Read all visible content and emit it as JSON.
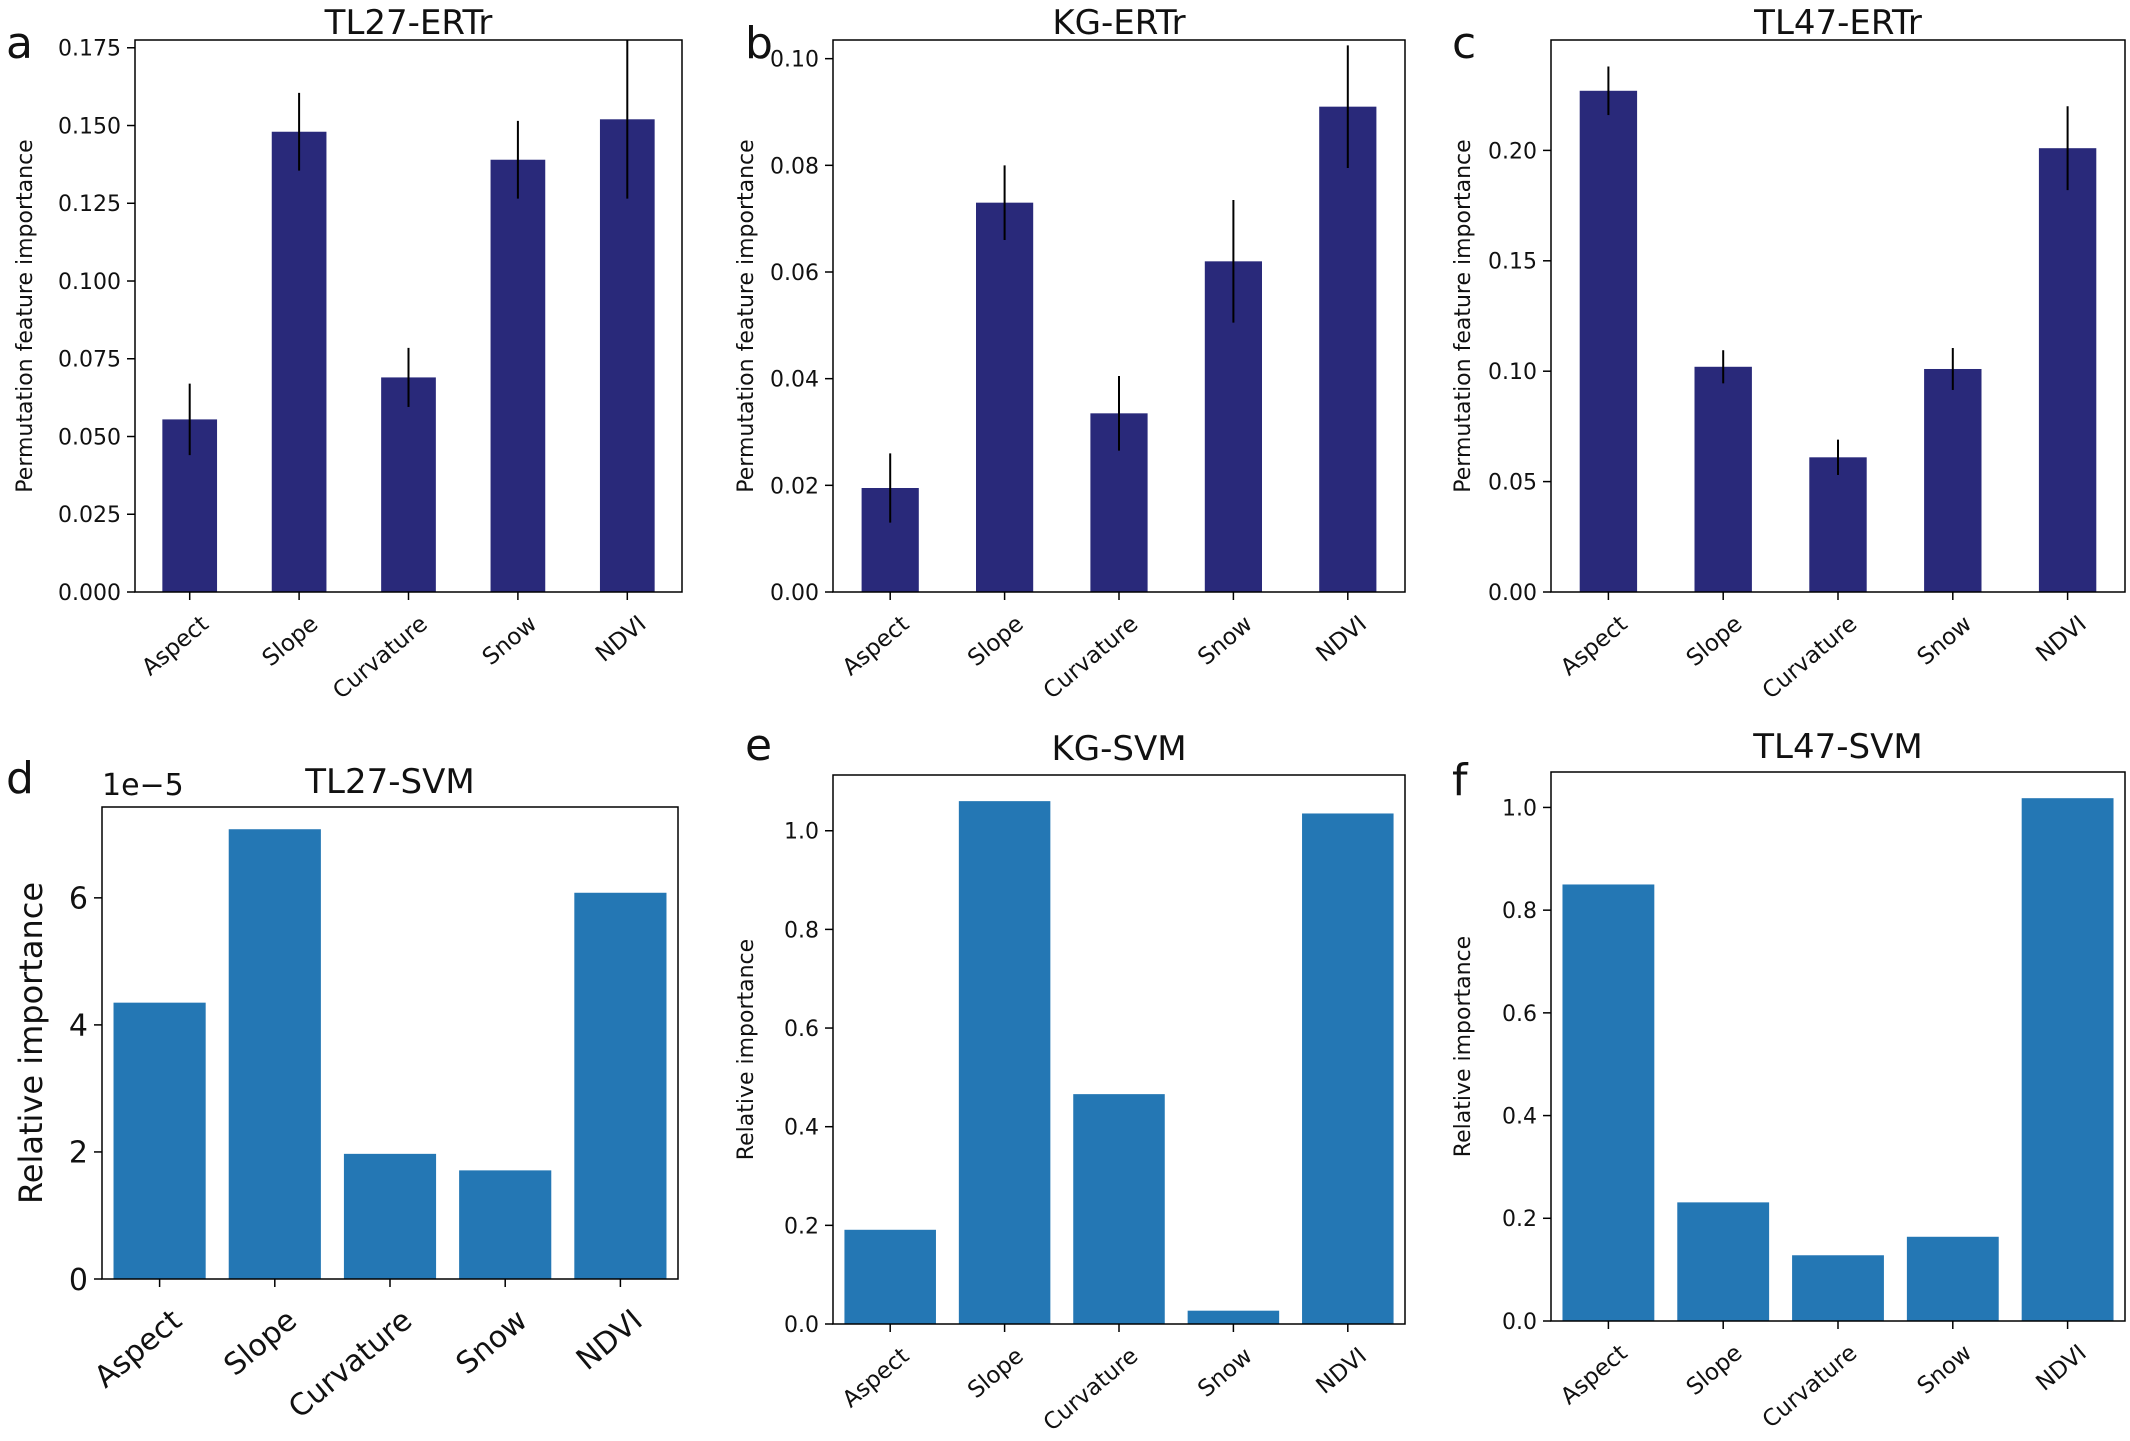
{
  "colors": {
    "ertr_bar": "#29297a",
    "svm_bar": "#2477b4",
    "error_bar": "#000000",
    "axis": "#000000"
  },
  "chart_data": [
    {
      "panel_label": "a",
      "title": "TL27-ERTr",
      "type": "bar",
      "categories": [
        "Aspect",
        "Slope",
        "Curvature",
        "Snow",
        "NDVI"
      ],
      "values": [
        0.0555,
        0.148,
        0.069,
        0.139,
        0.152
      ],
      "errors": [
        0.0115,
        0.0125,
        0.0095,
        0.0125,
        0.0255
      ],
      "ylabel": "Permutation feature importance",
      "xlabel": "",
      "ylim": [
        0,
        0.1775
      ],
      "yticks": [
        0,
        0.025,
        0.05,
        0.075,
        0.1,
        0.125,
        0.15,
        0.175
      ],
      "ytick_labels": [
        "0.000",
        "0.025",
        "0.050",
        "0.075",
        "0.100",
        "0.125",
        "0.150",
        "0.175"
      ],
      "scale_label": "",
      "bar_color": "ertr_bar",
      "error_bars": true,
      "grid": false
    },
    {
      "panel_label": "b",
      "title": "KG-ERTr",
      "type": "bar",
      "categories": [
        "Aspect",
        "Slope",
        "Curvature",
        "Snow",
        "NDVI"
      ],
      "values": [
        0.0195,
        0.073,
        0.0335,
        0.062,
        0.091
      ],
      "errors": [
        0.0065,
        0.007,
        0.007,
        0.0115,
        0.0115
      ],
      "ylabel": "Permutation feature importance",
      "xlabel": "",
      "ylim": [
        0,
        0.1035
      ],
      "yticks": [
        0,
        0.02,
        0.04,
        0.06,
        0.08,
        0.1
      ],
      "ytick_labels": [
        "0.00",
        "0.02",
        "0.04",
        "0.06",
        "0.08",
        "0.10"
      ],
      "scale_label": "",
      "bar_color": "ertr_bar",
      "error_bars": true,
      "grid": false
    },
    {
      "panel_label": "c",
      "title": "TL47-ERTr",
      "type": "bar",
      "categories": [
        "Aspect",
        "Slope",
        "Curvature",
        "Snow",
        "NDVI"
      ],
      "values": [
        0.227,
        0.102,
        0.061,
        0.101,
        0.201
      ],
      "errors": [
        0.011,
        0.0075,
        0.008,
        0.0095,
        0.019
      ],
      "ylabel": "Permutation feature importance",
      "xlabel": "",
      "ylim": [
        0,
        0.25
      ],
      "yticks": [
        0,
        0.05,
        0.1,
        0.15,
        0.2
      ],
      "ytick_labels": [
        "0.00",
        "0.05",
        "0.10",
        "0.15",
        "0.20"
      ],
      "scale_label": "",
      "bar_color": "ertr_bar",
      "error_bars": true,
      "grid": false
    },
    {
      "panel_label": "d",
      "title": "TL27-SVM",
      "type": "bar",
      "categories": [
        "Aspect",
        "Slope",
        "Curvature",
        "Snow",
        "NDVI"
      ],
      "values": [
        4.35,
        7.08,
        1.97,
        1.71,
        6.08
      ],
      "errors": [],
      "ylabel": "Relative importance",
      "xlabel": "",
      "ylim": [
        0,
        7.43
      ],
      "yticks": [
        0,
        2,
        4,
        6
      ],
      "ytick_labels": [
        "0",
        "2",
        "4",
        "6"
      ],
      "scale_label": "1e−5",
      "bar_color": "svm_bar",
      "error_bars": false,
      "grid": false
    },
    {
      "panel_label": "e",
      "title": "KG-SVM",
      "type": "bar",
      "categories": [
        "Aspect",
        "Slope",
        "Curvature",
        "Snow",
        "NDVI"
      ],
      "values": [
        0.191,
        1.06,
        0.466,
        0.027,
        1.035
      ],
      "errors": [],
      "ylabel": "Relative importance",
      "xlabel": "",
      "ylim": [
        0,
        1.113
      ],
      "yticks": [
        0,
        0.2,
        0.4,
        0.6,
        0.8,
        1.0
      ],
      "ytick_labels": [
        "0.0",
        "0.2",
        "0.4",
        "0.6",
        "0.8",
        "1.0"
      ],
      "scale_label": "",
      "bar_color": "svm_bar",
      "error_bars": false,
      "grid": false
    },
    {
      "panel_label": "f",
      "title": "TL47-SVM",
      "type": "bar",
      "categories": [
        "Aspect",
        "Slope",
        "Curvature",
        "Snow",
        "NDVI"
      ],
      "values": [
        0.85,
        0.231,
        0.128,
        0.164,
        1.018
      ],
      "errors": [],
      "ylabel": "Relative importance",
      "xlabel": "",
      "ylim": [
        0,
        1.069
      ],
      "yticks": [
        0,
        0.2,
        0.4,
        0.6,
        0.8,
        1.0
      ],
      "ytick_labels": [
        "0.0",
        "0.2",
        "0.4",
        "0.6",
        "0.8",
        "1.0"
      ],
      "scale_label": "",
      "bar_color": "svm_bar",
      "error_bars": false,
      "grid": false
    }
  ]
}
